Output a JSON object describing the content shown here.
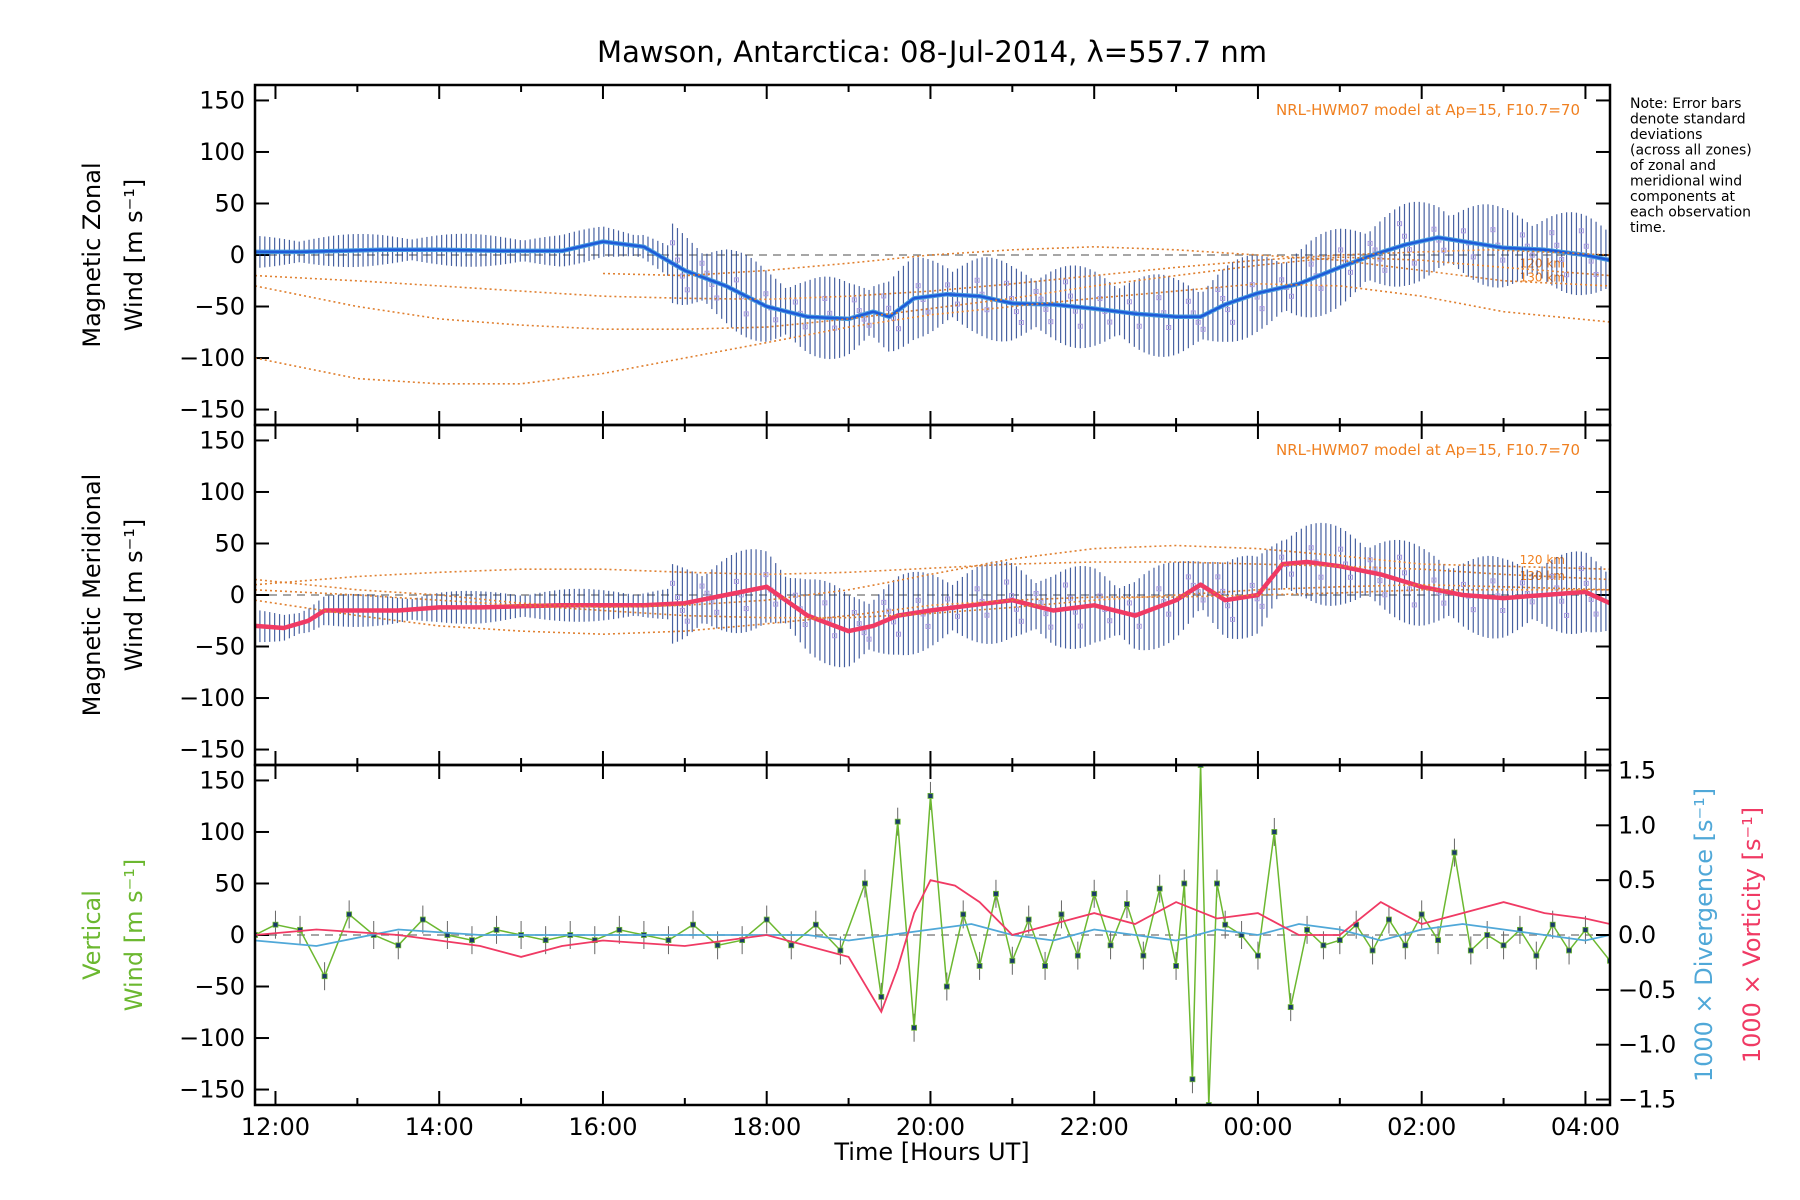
{
  "chart_data": {
    "type": "line",
    "title": "Mawson, Antarctica: 08-Jul-2014, λ=557.7 nm",
    "xlabel": "Time [Hours UT]",
    "x_ticks": [
      "12:00",
      "14:00",
      "16:00",
      "18:00",
      "20:00",
      "22:00",
      "00:00",
      "02:00",
      "04:00"
    ],
    "xlim_hours": [
      11.75,
      28.3
    ],
    "note": [
      "Note: Error bars",
      "denote standard",
      "deviations",
      "(across all zones)",
      "of zonal and",
      "meridional wind",
      "components at",
      "each observation",
      "time."
    ],
    "panels": [
      {
        "id": "zonal",
        "ylabel_lines": [
          "Magnetic Zonal",
          "Wind [m s⁻¹]"
        ],
        "ylim": [
          -165,
          165
        ],
        "yticks": [
          -150,
          -100,
          -50,
          0,
          50,
          100,
          150
        ],
        "model_label": "NRL-HWM07 model at Ap=15, F10.7=70",
        "model_height_labels": [
          "120 km",
          "130 km"
        ],
        "series": [
          {
            "name": "Magnetic Zonal Wind",
            "color": "#1e5ad8",
            "color2": "#4a9fe0",
            "x": [
              11.75,
              12.3,
              12.8,
              13.3,
              14.0,
              14.8,
              15.5,
              16.0,
              16.5,
              17.0,
              17.5,
              18.0,
              18.5,
              19.0,
              19.3,
              19.5,
              19.8,
              20.2,
              20.6,
              21.0,
              21.5,
              22.0,
              22.5,
              23.0,
              23.3,
              23.6,
              24.0,
              24.5,
              25.0,
              25.4,
              25.8,
              26.2,
              26.6,
              27.0,
              27.5,
              28.0,
              28.3
            ],
            "y": [
              3,
              3,
              4,
              5,
              5,
              4,
              4,
              13,
              8,
              -15,
              -30,
              -50,
              -60,
              -62,
              -55,
              -60,
              -42,
              -38,
              -40,
              -47,
              -48,
              -52,
              -57,
              -60,
              -60,
              -48,
              -37,
              -28,
              -12,
              0,
              10,
              17,
              12,
              7,
              5,
              0,
              -5
            ]
          },
          {
            "name": "Model 120 km",
            "color": "#e08030",
            "x": [
              11.75,
              13,
              14,
              15,
              16,
              17,
              18,
              19,
              20,
              21,
              22,
              23,
              24,
              25,
              26,
              26.8,
              27.5,
              28.3
            ],
            "y": [
              -20,
              -25,
              -30,
              -35,
              -40,
              -42,
              -43,
              -40,
              -35,
              -28,
              -20,
              -12,
              -5,
              0,
              3,
              5,
              3,
              0
            ]
          },
          {
            "name": "Model 130 km",
            "color": "#e08030",
            "x": [
              11.75,
              13,
              14,
              15,
              16,
              17,
              18,
              19,
              20,
              21,
              22,
              23,
              24,
              25,
              26,
              27,
              28.3
            ],
            "y": [
              -30,
              -50,
              -62,
              -68,
              -72,
              -72,
              -70,
              -62,
              -52,
              -42,
              -30,
              -20,
              -10,
              -2,
              -5,
              -12,
              -20
            ]
          },
          {
            "name": "Model 150 km",
            "color": "#e08030",
            "x": [
              11.75,
              13,
              14,
              15,
              16,
              17,
              18,
              19,
              20,
              21,
              22,
              23,
              24,
              25,
              26,
              27,
              28.3
            ],
            "y": [
              -100,
              -120,
              -125,
              -125,
              -115,
              -100,
              -85,
              -70,
              -58,
              -50,
              -42,
              -35,
              -28,
              -30,
              -40,
              -55,
              -65
            ]
          },
          {
            "name": "Model 180 km",
            "color": "#e08030",
            "x": [
              16,
              17,
              18,
              19,
              20,
              21,
              22,
              23,
              24,
              25,
              26,
              27,
              28.3
            ],
            "y": [
              -18,
              -20,
              -15,
              -8,
              0,
              5,
              8,
              5,
              0,
              -5,
              -15,
              -25,
              -30
            ]
          }
        ]
      },
      {
        "id": "meridional",
        "ylabel_lines": [
          "Magnetic Meridional",
          "Wind [m s⁻¹]"
        ],
        "ylim": [
          -165,
          165
        ],
        "yticks": [
          -150,
          -100,
          -50,
          0,
          50,
          100,
          150
        ],
        "model_label": "NRL-HWM07 model at Ap=15, F10.7=70",
        "model_height_labels": [
          "120 km",
          "130 km"
        ],
        "series": [
          {
            "name": "Magnetic Meridional Wind",
            "color": "#f03a64",
            "x": [
              11.75,
              12.1,
              12.4,
              12.6,
              13.0,
              13.5,
              14.0,
              14.5,
              15.0,
              15.5,
              16.0,
              16.5,
              17.0,
              17.5,
              18.0,
              18.5,
              19.0,
              19.3,
              19.6,
              20.0,
              20.5,
              21.0,
              21.5,
              22.0,
              22.5,
              23.0,
              23.3,
              23.6,
              24.0,
              24.3,
              24.6,
              25.0,
              25.5,
              26.0,
              26.5,
              27.0,
              27.5,
              28.0,
              28.3
            ],
            "y": [
              -30,
              -32,
              -25,
              -15,
              -15,
              -15,
              -12,
              -12,
              -11,
              -10,
              -10,
              -10,
              -8,
              0,
              8,
              -20,
              -35,
              -30,
              -20,
              -15,
              -10,
              -5,
              -15,
              -10,
              -20,
              -5,
              10,
              -5,
              0,
              30,
              32,
              28,
              20,
              8,
              0,
              -3,
              0,
              3,
              -8
            ]
          },
          {
            "name": "Model 120 km",
            "color": "#e08030",
            "x": [
              11.75,
              13,
              14,
              15,
              16,
              17,
              18,
              19,
              20,
              21,
              22,
              23,
              24,
              25,
              26,
              27,
              28.3
            ],
            "y": [
              15,
              5,
              0,
              -8,
              -12,
              -10,
              -5,
              5,
              20,
              35,
              45,
              48,
              45,
              38,
              30,
              28,
              25
            ]
          },
          {
            "name": "Model 130 km",
            "color": "#e08030",
            "x": [
              11.75,
              13,
              14,
              15,
              16,
              17,
              18,
              19,
              20,
              21,
              22,
              23,
              24,
              25,
              26,
              27,
              28.3
            ],
            "y": [
              10,
              18,
              22,
              25,
              25,
              22,
              20,
              22,
              26,
              30,
              32,
              32,
              30,
              28,
              25,
              20,
              15
            ]
          },
          {
            "name": "Model 150 km",
            "color": "#e08030",
            "x": [
              11.75,
              13,
              14,
              15,
              16,
              17,
              18,
              19,
              20,
              21,
              22,
              23,
              24,
              25,
              26,
              27,
              28.3
            ],
            "y": [
              -5,
              -20,
              -30,
              -35,
              -38,
              -35,
              -28,
              -20,
              -10,
              -5,
              -2,
              -2,
              0,
              2,
              5,
              5,
              5
            ]
          },
          {
            "name": "Model 180 km",
            "color": "#e08030",
            "x": [
              11.75,
              13,
              14,
              15,
              16,
              17,
              18,
              19,
              20,
              21,
              22,
              23,
              24,
              25,
              26,
              27,
              28.3
            ],
            "y": [
              5,
              0,
              -5,
              -10,
              -15,
              -20,
              -22,
              -22,
              -18,
              -12,
              -5,
              0,
              5,
              8,
              10,
              8,
              5
            ]
          }
        ]
      },
      {
        "id": "vertical",
        "ylabel_lines": [
          "Vertical",
          "Wind [m s⁻¹]"
        ],
        "ylim": [
          -165,
          165
        ],
        "yticks": [
          -150,
          -100,
          -50,
          0,
          50,
          100,
          150
        ],
        "right_axis": {
          "ylim": [
            -1.55,
            1.55
          ],
          "ticks": [
            "1.5",
            "1.0",
            "0.5",
            "0.0",
            "−0.5",
            "−1.0",
            "−1.5"
          ],
          "tick_values": [
            1.5,
            1.0,
            0.5,
            0.0,
            -0.5,
            -1.0,
            -1.5
          ],
          "label_divergence": "1000 × Divergence [s⁻¹]",
          "label_vorticity": "1000 × Vorticity [s⁻¹]"
        },
        "series": [
          {
            "name": "Vertical Wind",
            "color": "#6cb830",
            "x": [
              11.75,
              12.0,
              12.3,
              12.6,
              12.9,
              13.2,
              13.5,
              13.8,
              14.1,
              14.4,
              14.7,
              15.0,
              15.3,
              15.6,
              15.9,
              16.2,
              16.5,
              16.8,
              17.1,
              17.4,
              17.7,
              18.0,
              18.3,
              18.6,
              18.9,
              19.2,
              19.4,
              19.6,
              19.8,
              20.0,
              20.2,
              20.4,
              20.6,
              20.8,
              21.0,
              21.2,
              21.4,
              21.6,
              21.8,
              22.0,
              22.2,
              22.4,
              22.6,
              22.8,
              23.0,
              23.1,
              23.2,
              23.3,
              23.4,
              23.5,
              23.6,
              23.8,
              24.0,
              24.2,
              24.4,
              24.6,
              24.8,
              25.0,
              25.2,
              25.4,
              25.6,
              25.8,
              26.0,
              26.2,
              26.4,
              26.6,
              26.8,
              27.0,
              27.2,
              27.4,
              27.6,
              27.8,
              28.0,
              28.3
            ],
            "y": [
              0,
              10,
              5,
              -40,
              20,
              0,
              -10,
              15,
              0,
              -5,
              5,
              0,
              -5,
              0,
              -5,
              5,
              0,
              -5,
              10,
              -10,
              -5,
              15,
              -10,
              10,
              -15,
              50,
              -60,
              110,
              -90,
              135,
              -50,
              20,
              -30,
              40,
              -25,
              15,
              -30,
              20,
              -20,
              40,
              -10,
              30,
              -20,
              45,
              -30,
              50,
              -140,
              165,
              -165,
              50,
              10,
              0,
              -20,
              100,
              -70,
              5,
              -10,
              -5,
              10,
              -15,
              15,
              -10,
              20,
              -5,
              80,
              -15,
              0,
              -10,
              5,
              -20,
              10,
              -15,
              5,
              -25
            ]
          },
          {
            "name": "1000 × Divergence",
            "color": "#50a8d8",
            "right_axis": true,
            "x": [
              11.75,
              12.5,
              13.5,
              14.5,
              15.5,
              16.5,
              17.5,
              18.5,
              19.0,
              19.5,
              20.0,
              20.5,
              21.0,
              21.5,
              22.0,
              22.5,
              23.0,
              23.5,
              24.0,
              24.5,
              25.0,
              25.5,
              26.0,
              26.5,
              27.0,
              27.5,
              28.0,
              28.3
            ],
            "y": [
              -0.05,
              -0.1,
              0.05,
              0.0,
              0.0,
              0.0,
              0.0,
              0.0,
              -0.05,
              0.0,
              0.05,
              0.1,
              0.0,
              -0.05,
              0.05,
              0.0,
              -0.05,
              0.05,
              0.0,
              0.1,
              0.05,
              -0.05,
              0.05,
              0.1,
              0.05,
              0.0,
              -0.05,
              0.0
            ]
          },
          {
            "name": "1000 × Vorticity",
            "color": "#f03a64",
            "right_axis": true,
            "x": [
              11.75,
              12.5,
              13.5,
              14.5,
              15.0,
              15.5,
              16.0,
              17.0,
              18.0,
              19.0,
              19.4,
              19.6,
              19.8,
              20.0,
              20.3,
              20.6,
              21.0,
              21.5,
              22.0,
              22.5,
              23.0,
              23.5,
              24.0,
              24.5,
              25.0,
              25.5,
              26.0,
              26.5,
              27.0,
              27.5,
              28.0,
              28.3
            ],
            "y": [
              0.0,
              0.05,
              0.0,
              -0.1,
              -0.2,
              -0.1,
              -0.05,
              -0.1,
              0.0,
              -0.2,
              -0.7,
              -0.3,
              0.2,
              0.5,
              0.45,
              0.3,
              0.0,
              0.1,
              0.2,
              0.1,
              0.3,
              0.15,
              0.2,
              0.0,
              0.0,
              0.3,
              0.1,
              0.2,
              0.3,
              0.2,
              0.15,
              0.1
            ]
          }
        ]
      }
    ]
  }
}
